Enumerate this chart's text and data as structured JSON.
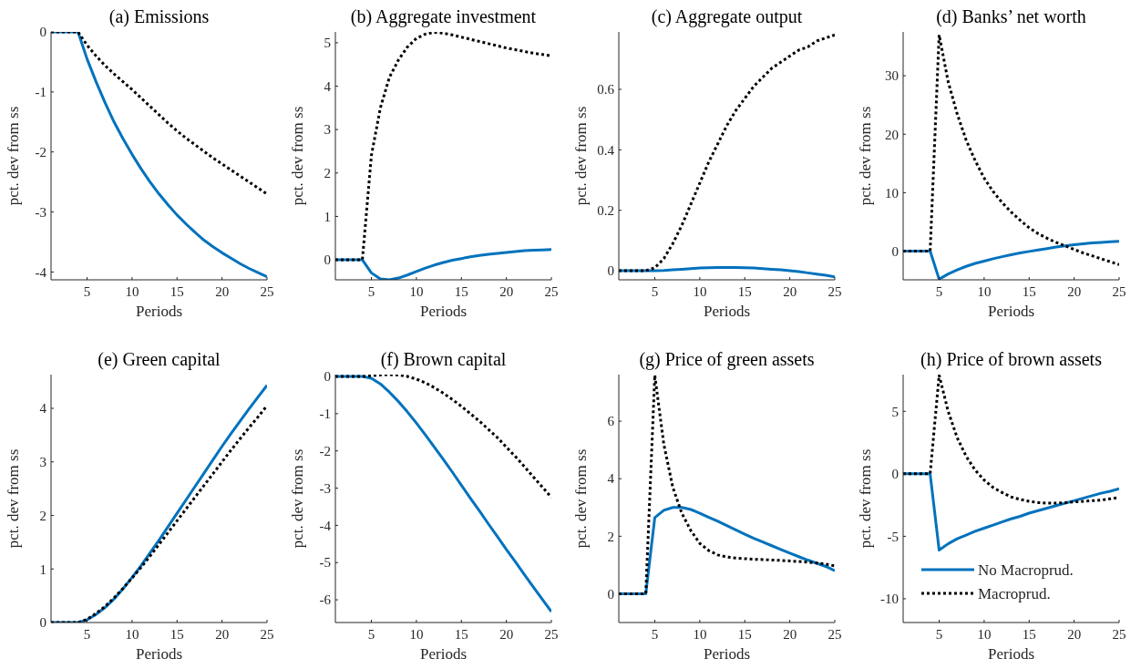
{
  "chart_data": [
    {
      "type": "line",
      "title": "(a) Emissions",
      "xlabel": "Periods",
      "ylabel": "pct. dev from ss",
      "xlim": [
        1,
        25
      ],
      "xticks": [
        5,
        10,
        15,
        20,
        25
      ],
      "ylim": [
        -4.13,
        0
      ],
      "yticks": [
        -4,
        -3,
        -2,
        -1,
        0
      ],
      "x": [
        1,
        2,
        3,
        4,
        5,
        6,
        7,
        8,
        9,
        10,
        11,
        12,
        13,
        14,
        15,
        16,
        17,
        18,
        19,
        20,
        21,
        22,
        23,
        24,
        25
      ],
      "series": [
        {
          "color": "#0072bd",
          "line_style": "solid",
          "values": [
            0,
            0,
            0,
            0,
            -0.45,
            -0.83,
            -1.18,
            -1.5,
            -1.78,
            -2.04,
            -2.28,
            -2.5,
            -2.7,
            -2.88,
            -3.05,
            -3.2,
            -3.34,
            -3.47,
            -3.58,
            -3.68,
            -3.77,
            -3.86,
            -3.94,
            -4.01,
            -4.08
          ]
        },
        {
          "color": "#000000",
          "line_style": "dotted",
          "values": [
            0,
            0,
            0,
            0,
            -0.22,
            -0.4,
            -0.56,
            -0.7,
            -0.83,
            -0.96,
            -1.1,
            -1.24,
            -1.38,
            -1.52,
            -1.65,
            -1.77,
            -1.88,
            -1.99,
            -2.1,
            -2.2,
            -2.3,
            -2.4,
            -2.5,
            -2.6,
            -2.7
          ]
        }
      ]
    },
    {
      "type": "line",
      "title": "(b) Aggregate investment",
      "xlabel": "Periods",
      "ylabel": "pct. dev from ss",
      "xlim": [
        1,
        25
      ],
      "xticks": [
        5,
        10,
        15,
        20,
        25
      ],
      "ylim": [
        -0.46,
        5.25
      ],
      "yticks": [
        0,
        1,
        2,
        3,
        4,
        5
      ],
      "x": [
        1,
        2,
        3,
        4,
        5,
        6,
        7,
        8,
        9,
        10,
        11,
        12,
        13,
        14,
        15,
        16,
        17,
        18,
        19,
        20,
        21,
        22,
        23,
        24,
        25
      ],
      "series": [
        {
          "color": "#0072bd",
          "line_style": "solid",
          "values": [
            0,
            0,
            0,
            0,
            -0.3,
            -0.44,
            -0.46,
            -0.42,
            -0.35,
            -0.27,
            -0.19,
            -0.12,
            -0.06,
            -0.01,
            0.03,
            0.07,
            0.1,
            0.13,
            0.15,
            0.17,
            0.19,
            0.21,
            0.22,
            0.23,
            0.24
          ]
        },
        {
          "color": "#000000",
          "line_style": "dotted",
          "values": [
            0,
            0,
            0,
            0,
            2.4,
            3.5,
            4.2,
            4.6,
            4.9,
            5.1,
            5.2,
            5.24,
            5.22,
            5.18,
            5.13,
            5.08,
            5.03,
            4.98,
            4.93,
            4.88,
            4.84,
            4.8,
            4.76,
            4.73,
            4.7
          ]
        }
      ]
    },
    {
      "type": "line",
      "title": "(c) Aggregate output",
      "xlabel": "Periods",
      "ylabel": "pct. dev from ss",
      "xlim": [
        1,
        25
      ],
      "xticks": [
        5,
        10,
        15,
        20,
        25
      ],
      "ylim": [
        -0.03,
        0.79
      ],
      "yticks": [
        0,
        0.2,
        0.4,
        0.6
      ],
      "x": [
        1,
        2,
        3,
        4,
        5,
        6,
        7,
        8,
        9,
        10,
        11,
        12,
        13,
        14,
        15,
        16,
        17,
        18,
        19,
        20,
        21,
        22,
        23,
        24,
        25
      ],
      "series": [
        {
          "color": "#0072bd",
          "line_style": "solid",
          "values": [
            0,
            0,
            0,
            0,
            0,
            0.001,
            0.003,
            0.005,
            0.007,
            0.009,
            0.01,
            0.011,
            0.011,
            0.011,
            0.01,
            0.009,
            0.007,
            0.005,
            0.003,
            0,
            -0.003,
            -0.007,
            -0.011,
            -0.015,
            -0.02
          ]
        },
        {
          "color": "#000000",
          "line_style": "dotted",
          "values": [
            0,
            0,
            0,
            0,
            0.01,
            0.04,
            0.09,
            0.15,
            0.22,
            0.29,
            0.36,
            0.42,
            0.48,
            0.53,
            0.57,
            0.61,
            0.64,
            0.67,
            0.69,
            0.71,
            0.73,
            0.74,
            0.76,
            0.77,
            0.78
          ]
        }
      ]
    },
    {
      "type": "line",
      "title": "(d) Banks’ net worth",
      "xlabel": "Periods",
      "ylabel": "pct. dev from ss",
      "xlim": [
        1,
        25
      ],
      "xticks": [
        5,
        10,
        15,
        20,
        25
      ],
      "ylim": [
        -4.9,
        37.5
      ],
      "yticks": [
        0,
        10,
        20,
        30
      ],
      "x": [
        1,
        2,
        3,
        4,
        5,
        6,
        7,
        8,
        9,
        10,
        11,
        12,
        13,
        14,
        15,
        16,
        17,
        18,
        19,
        20,
        21,
        22,
        23,
        24,
        25
      ],
      "series": [
        {
          "color": "#0072bd",
          "line_style": "solid",
          "values": [
            0,
            0,
            0,
            0,
            -4.8,
            -3.9,
            -3.2,
            -2.6,
            -2.1,
            -1.7,
            -1.3,
            -0.95,
            -0.6,
            -0.3,
            -0.05,
            0.2,
            0.45,
            0.7,
            0.9,
            1.1,
            1.25,
            1.4,
            1.5,
            1.6,
            1.7
          ]
        },
        {
          "color": "#000000",
          "line_style": "dotted",
          "values": [
            0,
            0,
            0,
            0,
            37,
            29,
            23.5,
            19,
            15.5,
            12.5,
            10.2,
            8.3,
            6.7,
            5.3,
            4,
            3,
            2.2,
            1.5,
            0.9,
            0.3,
            -0.3,
            -0.8,
            -1.3,
            -1.8,
            -2.3
          ]
        }
      ]
    },
    {
      "type": "line",
      "title": "(e) Green capital",
      "xlabel": "Periods",
      "ylabel": "pct. dev from ss",
      "xlim": [
        1,
        25
      ],
      "xticks": [
        5,
        10,
        15,
        20,
        25
      ],
      "ylim": [
        0,
        4.63
      ],
      "yticks": [
        0,
        1,
        2,
        3,
        4
      ],
      "x": [
        1,
        2,
        3,
        4,
        5,
        6,
        7,
        8,
        9,
        10,
        11,
        12,
        13,
        14,
        15,
        16,
        17,
        18,
        19,
        20,
        21,
        22,
        23,
        24,
        25
      ],
      "series": [
        {
          "color": "#0072bd",
          "line_style": "solid",
          "values": [
            0,
            0,
            0,
            0,
            0.05,
            0.15,
            0.28,
            0.44,
            0.63,
            0.84,
            1.06,
            1.3,
            1.54,
            1.79,
            2.04,
            2.29,
            2.54,
            2.79,
            3.04,
            3.29,
            3.53,
            3.76,
            3.99,
            4.21,
            4.43
          ]
        },
        {
          "color": "#000000",
          "line_style": "dotted",
          "values": [
            0,
            0,
            0,
            0,
            0.06,
            0.17,
            0.3,
            0.46,
            0.64,
            0.83,
            1.03,
            1.24,
            1.46,
            1.68,
            1.9,
            2.12,
            2.34,
            2.56,
            2.78,
            3,
            3.22,
            3.43,
            3.64,
            3.84,
            4.05
          ]
        }
      ]
    },
    {
      "type": "line",
      "title": "(f) Brown capital",
      "xlabel": "Periods",
      "ylabel": "pct. dev from ss",
      "xlim": [
        1,
        25
      ],
      "xticks": [
        5,
        10,
        15,
        20,
        25
      ],
      "ylim": [
        -6.61,
        0.05
      ],
      "yticks": [
        -6,
        -5,
        -4,
        -3,
        -2,
        -1,
        0
      ],
      "x": [
        1,
        2,
        3,
        4,
        5,
        6,
        7,
        8,
        9,
        10,
        11,
        12,
        13,
        14,
        15,
        16,
        17,
        18,
        19,
        20,
        21,
        22,
        23,
        24,
        25
      ],
      "series": [
        {
          "color": "#0072bd",
          "line_style": "solid",
          "values": [
            0,
            0,
            0,
            0,
            -0.05,
            -0.2,
            -0.42,
            -0.67,
            -0.95,
            -1.25,
            -1.57,
            -1.9,
            -2.23,
            -2.57,
            -2.92,
            -3.27,
            -3.61,
            -3.96,
            -4.3,
            -4.65,
            -4.98,
            -5.32,
            -5.66,
            -5.99,
            -6.32
          ]
        },
        {
          "color": "#000000",
          "line_style": "dotted",
          "values": [
            0,
            0,
            0,
            0,
            0.02,
            0.04,
            0.05,
            0.04,
            0,
            -0.07,
            -0.17,
            -0.3,
            -0.45,
            -0.62,
            -0.8,
            -1,
            -1.2,
            -1.42,
            -1.64,
            -1.9,
            -2.15,
            -2.42,
            -2.7,
            -2.97,
            -3.25
          ]
        }
      ]
    },
    {
      "type": "line",
      "title": "(g) Price of green assets",
      "xlabel": "Periods",
      "ylabel": "pct. dev from ss",
      "xlim": [
        1,
        25
      ],
      "xticks": [
        5,
        10,
        15,
        20,
        25
      ],
      "ylim": [
        -1,
        7.62
      ],
      "yticks": [
        0,
        2,
        4,
        6
      ],
      "x": [
        1,
        2,
        3,
        4,
        5,
        6,
        7,
        8,
        9,
        10,
        11,
        12,
        13,
        14,
        15,
        16,
        17,
        18,
        19,
        20,
        21,
        22,
        23,
        24,
        25
      ],
      "series": [
        {
          "color": "#0072bd",
          "line_style": "solid",
          "values": [
            0,
            0,
            0,
            0,
            2.65,
            2.9,
            3,
            3,
            2.93,
            2.8,
            2.66,
            2.52,
            2.37,
            2.22,
            2.07,
            1.93,
            1.8,
            1.67,
            1.54,
            1.41,
            1.29,
            1.17,
            1.06,
            0.95,
            0.8
          ]
        },
        {
          "color": "#000000",
          "line_style": "dotted",
          "values": [
            0,
            0,
            0,
            0,
            7.6,
            5.2,
            3.7,
            2.8,
            2.2,
            1.75,
            1.5,
            1.35,
            1.28,
            1.24,
            1.22,
            1.2,
            1.19,
            1.17,
            1.16,
            1.14,
            1.12,
            1.1,
            1.07,
            1.03,
            0.97
          ]
        }
      ]
    },
    {
      "type": "line",
      "title": "(h) Price of brown assets",
      "xlabel": "Periods",
      "ylabel": "pct. dev from ss",
      "xlim": [
        1,
        25
      ],
      "xticks": [
        5,
        10,
        15,
        20,
        25
      ],
      "ylim": [
        -11.9,
        7.94
      ],
      "yticks": [
        -10,
        -5,
        0,
        5
      ],
      "legend": "bottom left",
      "x": [
        1,
        2,
        3,
        4,
        5,
        6,
        7,
        8,
        9,
        10,
        11,
        12,
        13,
        14,
        15,
        16,
        17,
        18,
        19,
        20,
        21,
        22,
        23,
        24,
        25
      ],
      "series": [
        {
          "name": "No Macroprud.",
          "color": "#0072bd",
          "line_style": "solid",
          "values": [
            0,
            0,
            0,
            0,
            -6.1,
            -5.6,
            -5.2,
            -4.9,
            -4.6,
            -4.35,
            -4.1,
            -3.85,
            -3.6,
            -3.4,
            -3.15,
            -2.95,
            -2.75,
            -2.55,
            -2.35,
            -2.15,
            -1.95,
            -1.75,
            -1.55,
            -1.4,
            -1.2
          ]
        },
        {
          "name": "Macroprud.",
          "color": "#000000",
          "line_style": "dotted",
          "values": [
            0,
            0,
            0,
            0,
            7.9,
            5,
            2.9,
            1.4,
            0.3,
            -0.5,
            -1.1,
            -1.5,
            -1.85,
            -2.05,
            -2.2,
            -2.3,
            -2.35,
            -2.35,
            -2.3,
            -2.25,
            -2.2,
            -2.15,
            -2.1,
            -2,
            -1.9
          ]
        }
      ]
    }
  ]
}
